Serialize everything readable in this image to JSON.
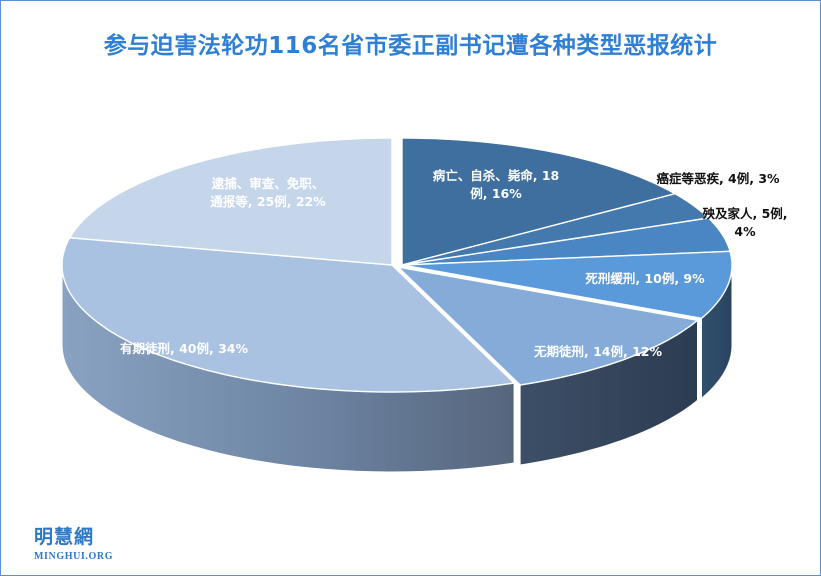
{
  "chart_data": {
    "type": "pie",
    "title": "参与迫害法轮功116名省市委正副书记遭各种类型恶报统计",
    "slices": [
      {
        "label": "病亡、自杀、毙命",
        "value": 18,
        "unit": "例",
        "percent": "16%",
        "color": "#3e6f9e"
      },
      {
        "label": "癌症等恶疾",
        "value": 4,
        "unit": "例",
        "percent": "3%",
        "color": "#4379ad"
      },
      {
        "label": "殃及家人",
        "value": 5,
        "unit": "例",
        "percent": "4%",
        "color": "#4a86c4"
      },
      {
        "label": "死刑缓刑",
        "value": 10,
        "unit": "例",
        "percent": "9%",
        "color": "#5a9ada"
      },
      {
        "label": "无期徒刑",
        "value": 14,
        "unit": "例",
        "percent": "12%",
        "color": "#85acd9"
      },
      {
        "label": "有期徒刑",
        "value": 40,
        "unit": "例",
        "percent": "34%",
        "color": "#a9c2e2"
      },
      {
        "label": "逮捕、审查、免职、通报等",
        "value": 25,
        "unit": "例",
        "percent": "22%",
        "color": "#c6d6ea"
      }
    ],
    "labels": [
      {
        "lines": [
          "病亡、自杀、毙命, 18",
          "例, 16%"
        ],
        "color": "#ffffff"
      },
      {
        "lines": [
          "癌症等恶疾, 4例, 3%"
        ],
        "color": "#111111"
      },
      {
        "lines": [
          "殃及家人, 5例,",
          "4%"
        ],
        "color": "#111111"
      },
      {
        "lines": [
          "死刑缓刑, 10例, 9%"
        ],
        "color": "#ffffff"
      },
      {
        "lines": [
          "无期徒刑, 14例, 12%"
        ],
        "color": "#ffffff"
      },
      {
        "lines": [
          "有期徒刑, 40例, 34%"
        ],
        "color": "#ffffff"
      },
      {
        "lines": [
          "逮捕、审查、免职、",
          "通报等, 25例, 22%"
        ],
        "color": "#ffffff"
      }
    ],
    "legend": "none",
    "style": "3d-exploded"
  },
  "logo": {
    "chinese": "明慧網",
    "english": "MINGHUI.ORG"
  }
}
